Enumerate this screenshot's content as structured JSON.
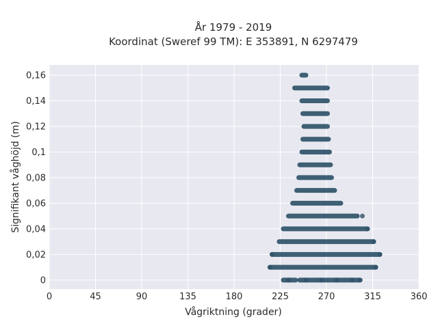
{
  "chart_data": {
    "type": "scatter",
    "title": "År 1979 - 2019",
    "subtitle": "Koordinat (Sweref 99 TM): E 353891, N 6297479",
    "xlabel": "Vågriktning (grader)",
    "ylabel": "Signifikant våghöjd (m)",
    "xlim": [
      0,
      360
    ],
    "ylim": [
      -0.007,
      0.168
    ],
    "x_ticks": [
      "0",
      "45",
      "90",
      "135",
      "180",
      "225",
      "270",
      "315",
      "360"
    ],
    "x_tick_values": [
      0,
      45,
      90,
      135,
      180,
      225,
      270,
      315,
      360
    ],
    "y_ticks": [
      "0",
      "0,02",
      "0,04",
      "0,06",
      "0,08",
      "0,1",
      "0,12",
      "0,14",
      "0,16"
    ],
    "y_tick_values": [
      0,
      0.02,
      0.04,
      0.06,
      0.08,
      0.1,
      0.12,
      0.14,
      0.16
    ],
    "grid": true,
    "background": "#e8e8f0",
    "marker_color": "#2f5369",
    "rows": [
      {
        "y": 0,
        "segments": [
          [
            228,
            240
          ],
          [
            244,
            302
          ]
        ],
        "points": [
          233,
          250,
          265,
          280,
          295,
          303
        ]
      },
      {
        "y": 0.01,
        "segments": [
          [
            215,
            318
          ]
        ],
        "points": [
          215,
          318
        ]
      },
      {
        "y": 0.02,
        "segments": [
          [
            217,
            322
          ]
        ],
        "points": [
          217,
          322
        ]
      },
      {
        "y": 0.03,
        "segments": [
          [
            224,
            316
          ]
        ],
        "points": [
          316
        ]
      },
      {
        "y": 0.04,
        "segments": [
          [
            228,
            310
          ]
        ],
        "points": [
          310
        ]
      },
      {
        "y": 0.05,
        "segments": [
          [
            233,
            300
          ]
        ],
        "points": [
          305
        ]
      },
      {
        "y": 0.06,
        "segments": [
          [
            237,
            284
          ]
        ],
        "points": []
      },
      {
        "y": 0.07,
        "segments": [
          [
            241,
            278
          ]
        ],
        "points": []
      },
      {
        "y": 0.08,
        "segments": [
          [
            243,
            275
          ]
        ],
        "points": []
      },
      {
        "y": 0.09,
        "segments": [
          [
            244,
            274
          ]
        ],
        "points": []
      },
      {
        "y": 0.1,
        "segments": [
          [
            246,
            273
          ]
        ],
        "points": []
      },
      {
        "y": 0.11,
        "segments": [
          [
            247,
            272
          ]
        ],
        "points": []
      },
      {
        "y": 0.12,
        "segments": [
          [
            248,
            271
          ]
        ],
        "points": []
      },
      {
        "y": 0.13,
        "segments": [
          [
            247,
            271
          ]
        ],
        "points": []
      },
      {
        "y": 0.14,
        "segments": [
          [
            246,
            271
          ]
        ],
        "points": []
      },
      {
        "y": 0.15,
        "segments": [
          [
            239,
            271
          ]
        ],
        "points": []
      },
      {
        "y": 0.16,
        "segments": [
          [
            246,
            250
          ]
        ],
        "points": []
      }
    ]
  }
}
